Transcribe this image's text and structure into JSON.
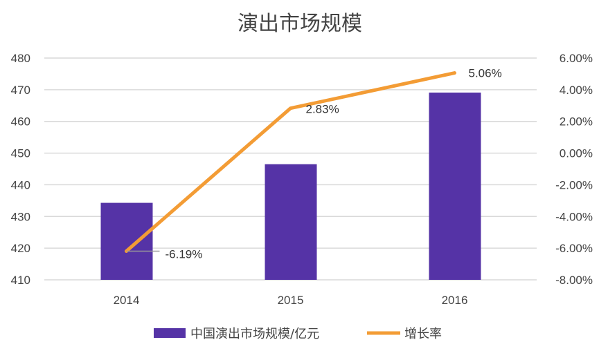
{
  "chart_data": {
    "type": "bar+line",
    "title": "演出市场规模",
    "categories": [
      "2014",
      "2015",
      "2016"
    ],
    "series": [
      {
        "name": "中国演出市场规模/亿元",
        "type": "bar",
        "axis": "left",
        "values": [
          434.3,
          446.5,
          469.1
        ],
        "color": "#5533A6"
      },
      {
        "name": "增长率",
        "type": "line",
        "axis": "right",
        "values": [
          -6.19,
          2.83,
          5.06
        ],
        "data_labels": [
          "-6.19%",
          "2.83%",
          "5.06%"
        ],
        "color": "#F39C35"
      }
    ],
    "y_left": {
      "range": [
        410,
        480
      ],
      "ticks": [
        "410",
        "420",
        "430",
        "440",
        "450",
        "460",
        "470",
        "480"
      ]
    },
    "y_right": {
      "range": [
        -8,
        6
      ],
      "ticks": [
        "-8.00%",
        "-6.00%",
        "-4.00%",
        "-2.00%",
        "0.00%",
        "2.00%",
        "4.00%",
        "6.00%"
      ]
    },
    "grid": true,
    "legend": "bottom"
  }
}
